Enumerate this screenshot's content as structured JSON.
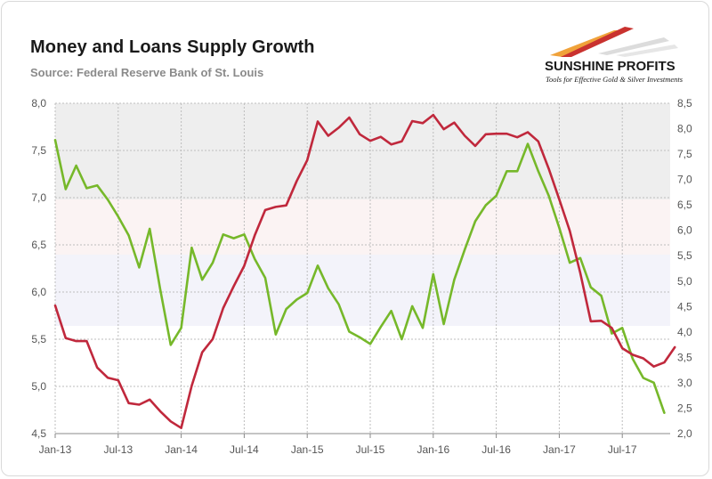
{
  "header": {
    "title": "Money and Loans Supply Growth",
    "source": "Source: Federal Reserve Bank of St. Louis"
  },
  "logo": {
    "name": "SUNSHINE PROFITS",
    "tagline": "Tools for Effective Gold & Silver Investments",
    "colors": [
      "#f0a23a",
      "#c9322f",
      "#dcdcdc"
    ]
  },
  "chart_data": {
    "type": "line",
    "title": "Money and Loans Supply Growth",
    "xlabel": "",
    "ylabel_left": "",
    "ylabel_right": "",
    "x_tick_labels": [
      "Jan-13",
      "Jul-13",
      "Jan-14",
      "Jul-14",
      "Jan-15",
      "Jul-15",
      "Jan-16",
      "Jul-16",
      "Jan-17",
      "Jul-17"
    ],
    "x_tick_month_index": [
      0,
      6,
      12,
      18,
      24,
      30,
      36,
      42,
      48,
      54
    ],
    "ylim_left": [
      4.5,
      8.0
    ],
    "ylim_right": [
      2.0,
      8.5
    ],
    "y_ticks_left": [
      "4,5",
      "5,0",
      "5,5",
      "6,0",
      "6,5",
      "7,0",
      "7,5",
      "8,0"
    ],
    "y_ticks_right": [
      "2,0",
      "2,5",
      "3,0",
      "3,5",
      "4,0",
      "4,5",
      "5,0",
      "5,5",
      "6,0",
      "6,5",
      "7,0",
      "7,5",
      "8,0",
      "8,5"
    ],
    "grid": true,
    "series": [
      {
        "axis": "left",
        "color": "#76b82a",
        "values": [
          7.61,
          7.09,
          7.34,
          7.1,
          7.13,
          6.98,
          6.8,
          6.6,
          6.26,
          6.67,
          6.03,
          5.44,
          5.62,
          6.47,
          6.13,
          6.31,
          6.61,
          6.57,
          6.61,
          6.35,
          6.15,
          5.55,
          5.82,
          5.92,
          5.99,
          6.28,
          6.04,
          5.87,
          5.58,
          5.52,
          5.45,
          5.63,
          5.8,
          5.5,
          5.85,
          5.62,
          6.19,
          5.66,
          6.13,
          6.45,
          6.75,
          6.92,
          7.02,
          7.28,
          7.28,
          7.57,
          7.28,
          7.02,
          6.68,
          6.31,
          6.36,
          6.05,
          5.96,
          5.56,
          5.62,
          5.29,
          5.09,
          5.04,
          4.72
        ]
      },
      {
        "axis": "right",
        "color": "#c0283c",
        "values": [
          4.52,
          3.88,
          3.82,
          3.82,
          3.3,
          3.1,
          3.05,
          2.6,
          2.57,
          2.67,
          2.44,
          2.24,
          2.11,
          2.94,
          3.6,
          3.86,
          4.47,
          4.9,
          5.3,
          5.9,
          6.4,
          6.46,
          6.49,
          6.97,
          7.38,
          8.14,
          7.86,
          8.02,
          8.22,
          7.89,
          7.76,
          7.84,
          7.69,
          7.75,
          8.15,
          8.11,
          8.27,
          7.99,
          8.12,
          7.86,
          7.66,
          7.89,
          7.9,
          7.9,
          7.83,
          7.93,
          7.75,
          7.21,
          6.61,
          5.99,
          5.16,
          4.21,
          4.22,
          4.08,
          3.68,
          3.55,
          3.48,
          3.32,
          3.4,
          3.7
        ]
      }
    ]
  }
}
